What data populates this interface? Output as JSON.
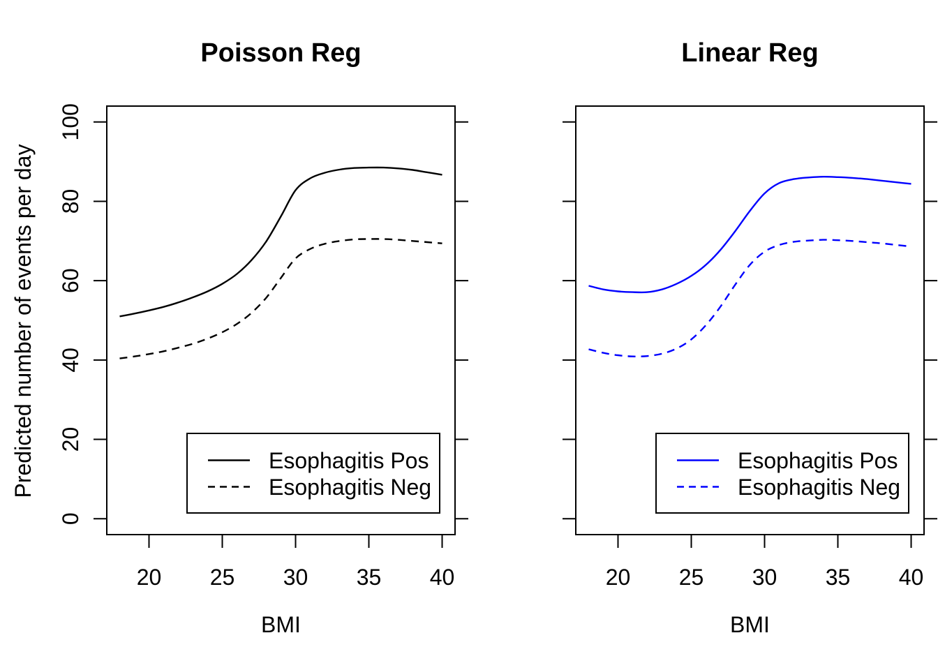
{
  "figure_background": "#ffffff",
  "text_color": "#000000",
  "chart_data": [
    {
      "type": "line",
      "title": "Poisson Reg",
      "xlabel": "BMI",
      "ylabel": "Predicted number of events per day",
      "x": [
        18,
        19,
        20,
        21,
        22,
        23,
        24,
        25,
        26,
        27,
        28,
        29,
        30,
        31,
        32,
        33,
        34,
        35,
        36,
        37,
        38,
        39,
        40
      ],
      "series": [
        {
          "name": "Esophagitis Pos",
          "style": "solid",
          "color": "#000000",
          "values": [
            51.0,
            51.7,
            52.5,
            53.4,
            54.5,
            55.8,
            57.3,
            59.2,
            61.7,
            65.2,
            69.9,
            76.2,
            82.8,
            85.8,
            87.2,
            88.0,
            88.4,
            88.5,
            88.5,
            88.3,
            87.9,
            87.3,
            86.7
          ]
        },
        {
          "name": "Esophagitis Neg",
          "style": "dashed",
          "color": "#000000",
          "values": [
            40.4,
            40.9,
            41.5,
            42.2,
            43.1,
            44.1,
            45.4,
            47.0,
            49.1,
            51.9,
            55.7,
            60.7,
            65.6,
            68.0,
            69.3,
            70.0,
            70.4,
            70.5,
            70.5,
            70.3,
            70.0,
            69.7,
            69.4
          ]
        }
      ],
      "xlim": [
        17.12,
        40.88
      ],
      "ylim": [
        -4,
        104
      ],
      "x_ticks": [
        20,
        25,
        30,
        35,
        40
      ],
      "y_ticks": [
        0,
        20,
        40,
        60,
        80,
        100
      ],
      "show_y_tick_labels": true,
      "grid": false,
      "legend_position": "inside-bottom-right",
      "legend": [
        "Esophagitis Pos",
        "Esophagitis Neg"
      ]
    },
    {
      "type": "line",
      "title": "Linear Reg",
      "xlabel": "BMI",
      "ylabel": "",
      "x": [
        18,
        19,
        20,
        21,
        22,
        23,
        24,
        25,
        26,
        27,
        28,
        29,
        30,
        31,
        32,
        33,
        34,
        35,
        36,
        37,
        38,
        39,
        40
      ],
      "series": [
        {
          "name": "Esophagitis Pos",
          "style": "solid",
          "color": "#0000FF",
          "values": [
            58.7,
            57.8,
            57.3,
            57.1,
            57.1,
            57.8,
            59.2,
            61.2,
            64.0,
            67.8,
            72.5,
            77.6,
            82.0,
            84.6,
            85.6,
            86.0,
            86.2,
            86.1,
            85.9,
            85.6,
            85.2,
            84.8,
            84.4
          ]
        },
        {
          "name": "Esophagitis Neg",
          "style": "dashed",
          "color": "#0000FF",
          "values": [
            42.7,
            41.8,
            41.2,
            40.9,
            41.0,
            41.6,
            42.9,
            45.2,
            48.8,
            53.5,
            59.0,
            64.0,
            67.3,
            69.0,
            69.8,
            70.1,
            70.3,
            70.2,
            70.0,
            69.7,
            69.4,
            69.0,
            68.6
          ]
        }
      ],
      "xlim": [
        17.12,
        40.88
      ],
      "ylim": [
        -4,
        104
      ],
      "x_ticks": [
        20,
        25,
        30,
        35,
        40
      ],
      "y_ticks": [
        0,
        20,
        40,
        60,
        80,
        100
      ],
      "show_y_tick_labels": false,
      "grid": false,
      "legend_position": "inside-bottom-right",
      "legend": [
        "Esophagitis Pos",
        "Esophagitis Neg"
      ]
    }
  ]
}
